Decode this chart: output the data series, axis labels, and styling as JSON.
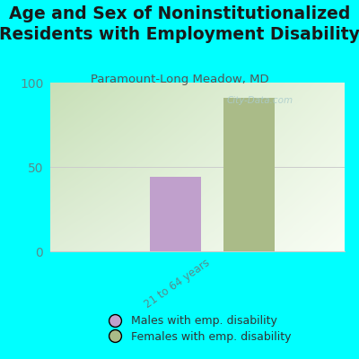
{
  "title": "Age and Sex of Noninstitutionalized\nResidents with Employment Disability",
  "subtitle": "Paramount-Long Meadow, MD",
  "watermark": "City-Data.com",
  "age_group": "21 to 64 years",
  "male_value": 44,
  "female_value": 91,
  "male_color": "#C0A0CC",
  "female_color": "#AABB88",
  "background_color": "#00FFFF",
  "ylim": [
    0,
    100
  ],
  "yticks": [
    0,
    50,
    100
  ],
  "legend_male": "Males with emp. disability",
  "legend_female": "Females with emp. disability",
  "title_fontsize": 13.5,
  "subtitle_fontsize": 9.5,
  "tick_label_color": "#5a8a8a",
  "watermark_color": "#aacccc",
  "ytick_fontsize": 10,
  "xtick_fontsize": 8.5,
  "legend_fontsize": 9,
  "bar_gap": 0.1,
  "bar_width": 0.35
}
